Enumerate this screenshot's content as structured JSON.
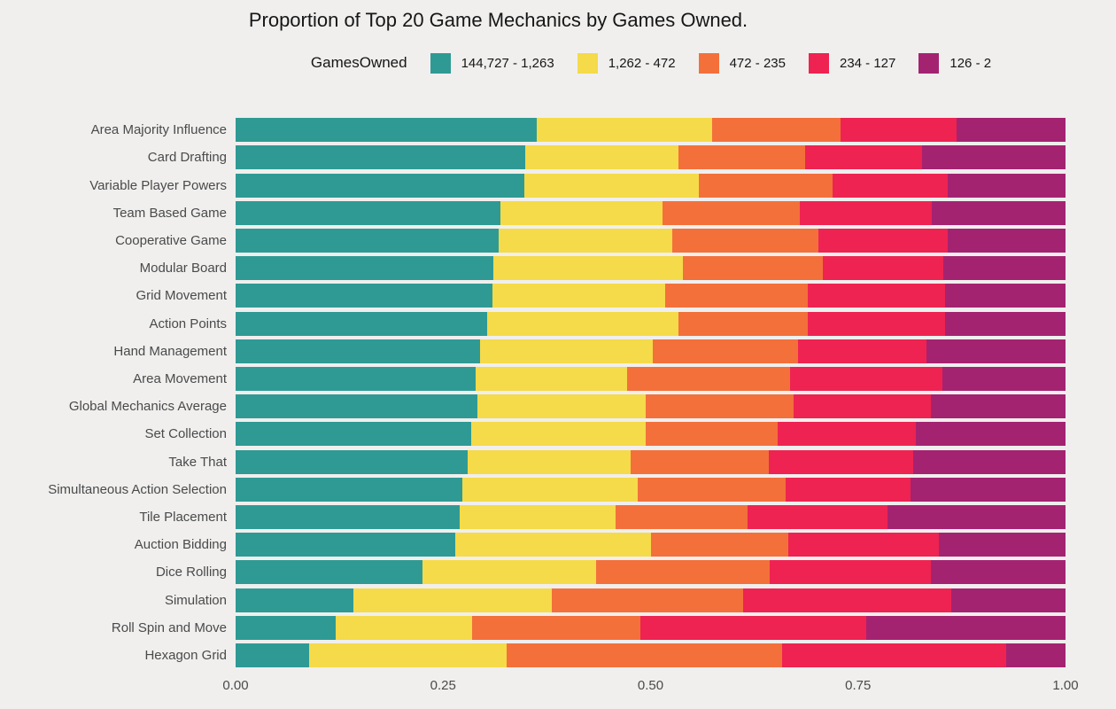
{
  "title": "Proportion of Top 20 Game Mechanics by Games Owned.",
  "legend": {
    "title": "GamesOwned"
  },
  "colors": {
    "background": "#f0efee",
    "title_text": "#161616",
    "axis_text": "#4a4a4a",
    "teal": "#2f9a94",
    "yellow": "#f5da4a",
    "orange": "#f3703b",
    "red": "#ee2351",
    "purple": "#a42371"
  },
  "x_axis": {
    "tick_labels": [
      "0.00",
      "0.25",
      "0.50",
      "0.75",
      "1.00"
    ],
    "tick_positions": [
      0,
      0.25,
      0.5,
      0.75,
      1
    ]
  },
  "chart_data": {
    "type": "bar",
    "orientation": "horizontal_stacked",
    "title": "Proportion of Top 20 Game Mechanics by Games Owned.",
    "legend_title": "GamesOwned",
    "legend_position": "top",
    "xlabel": "",
    "ylabel": "",
    "xlim": [
      0,
      1
    ],
    "x_ticks": [
      0,
      0.25,
      0.5,
      0.75,
      1
    ],
    "grid": false,
    "categories": [
      "Area Majority Influence",
      "Card Drafting",
      "Variable Player Powers",
      "Team Based Game",
      "Cooperative Game",
      "Modular Board",
      "Grid Movement",
      "Action Points",
      "Hand Management",
      "Area Movement",
      "Global Mechanics Average",
      "Set Collection",
      "Take That",
      "Simultaneous Action Selection",
      "Tile Placement",
      "Auction Bidding",
      "Dice Rolling",
      "Simulation",
      "Roll Spin and Move",
      "Hexagon Grid"
    ],
    "series": [
      {
        "name": "144,727 - 1,263",
        "color": "#2f9a94",
        "values": [
          0.363,
          0.349,
          0.348,
          0.319,
          0.317,
          0.311,
          0.309,
          0.303,
          0.295,
          0.289,
          0.291,
          0.284,
          0.28,
          0.273,
          0.27,
          0.265,
          0.225,
          0.142,
          0.121,
          0.089
        ]
      },
      {
        "name": "1,262 - 472",
        "color": "#f5da4a",
        "values": [
          0.211,
          0.185,
          0.21,
          0.195,
          0.209,
          0.228,
          0.209,
          0.231,
          0.208,
          0.183,
          0.203,
          0.21,
          0.196,
          0.212,
          0.188,
          0.236,
          0.209,
          0.239,
          0.164,
          0.238
        ]
      },
      {
        "name": "472 - 235",
        "color": "#f3703b",
        "values": [
          0.155,
          0.152,
          0.161,
          0.166,
          0.176,
          0.169,
          0.171,
          0.155,
          0.175,
          0.196,
          0.178,
          0.159,
          0.166,
          0.178,
          0.159,
          0.165,
          0.21,
          0.231,
          0.203,
          0.331
        ]
      },
      {
        "name": "234 - 127",
        "color": "#ee2351",
        "values": [
          0.14,
          0.141,
          0.139,
          0.159,
          0.156,
          0.145,
          0.166,
          0.166,
          0.154,
          0.184,
          0.166,
          0.167,
          0.174,
          0.15,
          0.169,
          0.181,
          0.194,
          0.25,
          0.272,
          0.27
        ]
      },
      {
        "name": "126 - 2",
        "color": "#a42371",
        "values": [
          0.131,
          0.173,
          0.142,
          0.161,
          0.142,
          0.147,
          0.145,
          0.145,
          0.168,
          0.148,
          0.162,
          0.18,
          0.184,
          0.187,
          0.214,
          0.153,
          0.162,
          0.138,
          0.24,
          0.072
        ]
      }
    ]
  }
}
